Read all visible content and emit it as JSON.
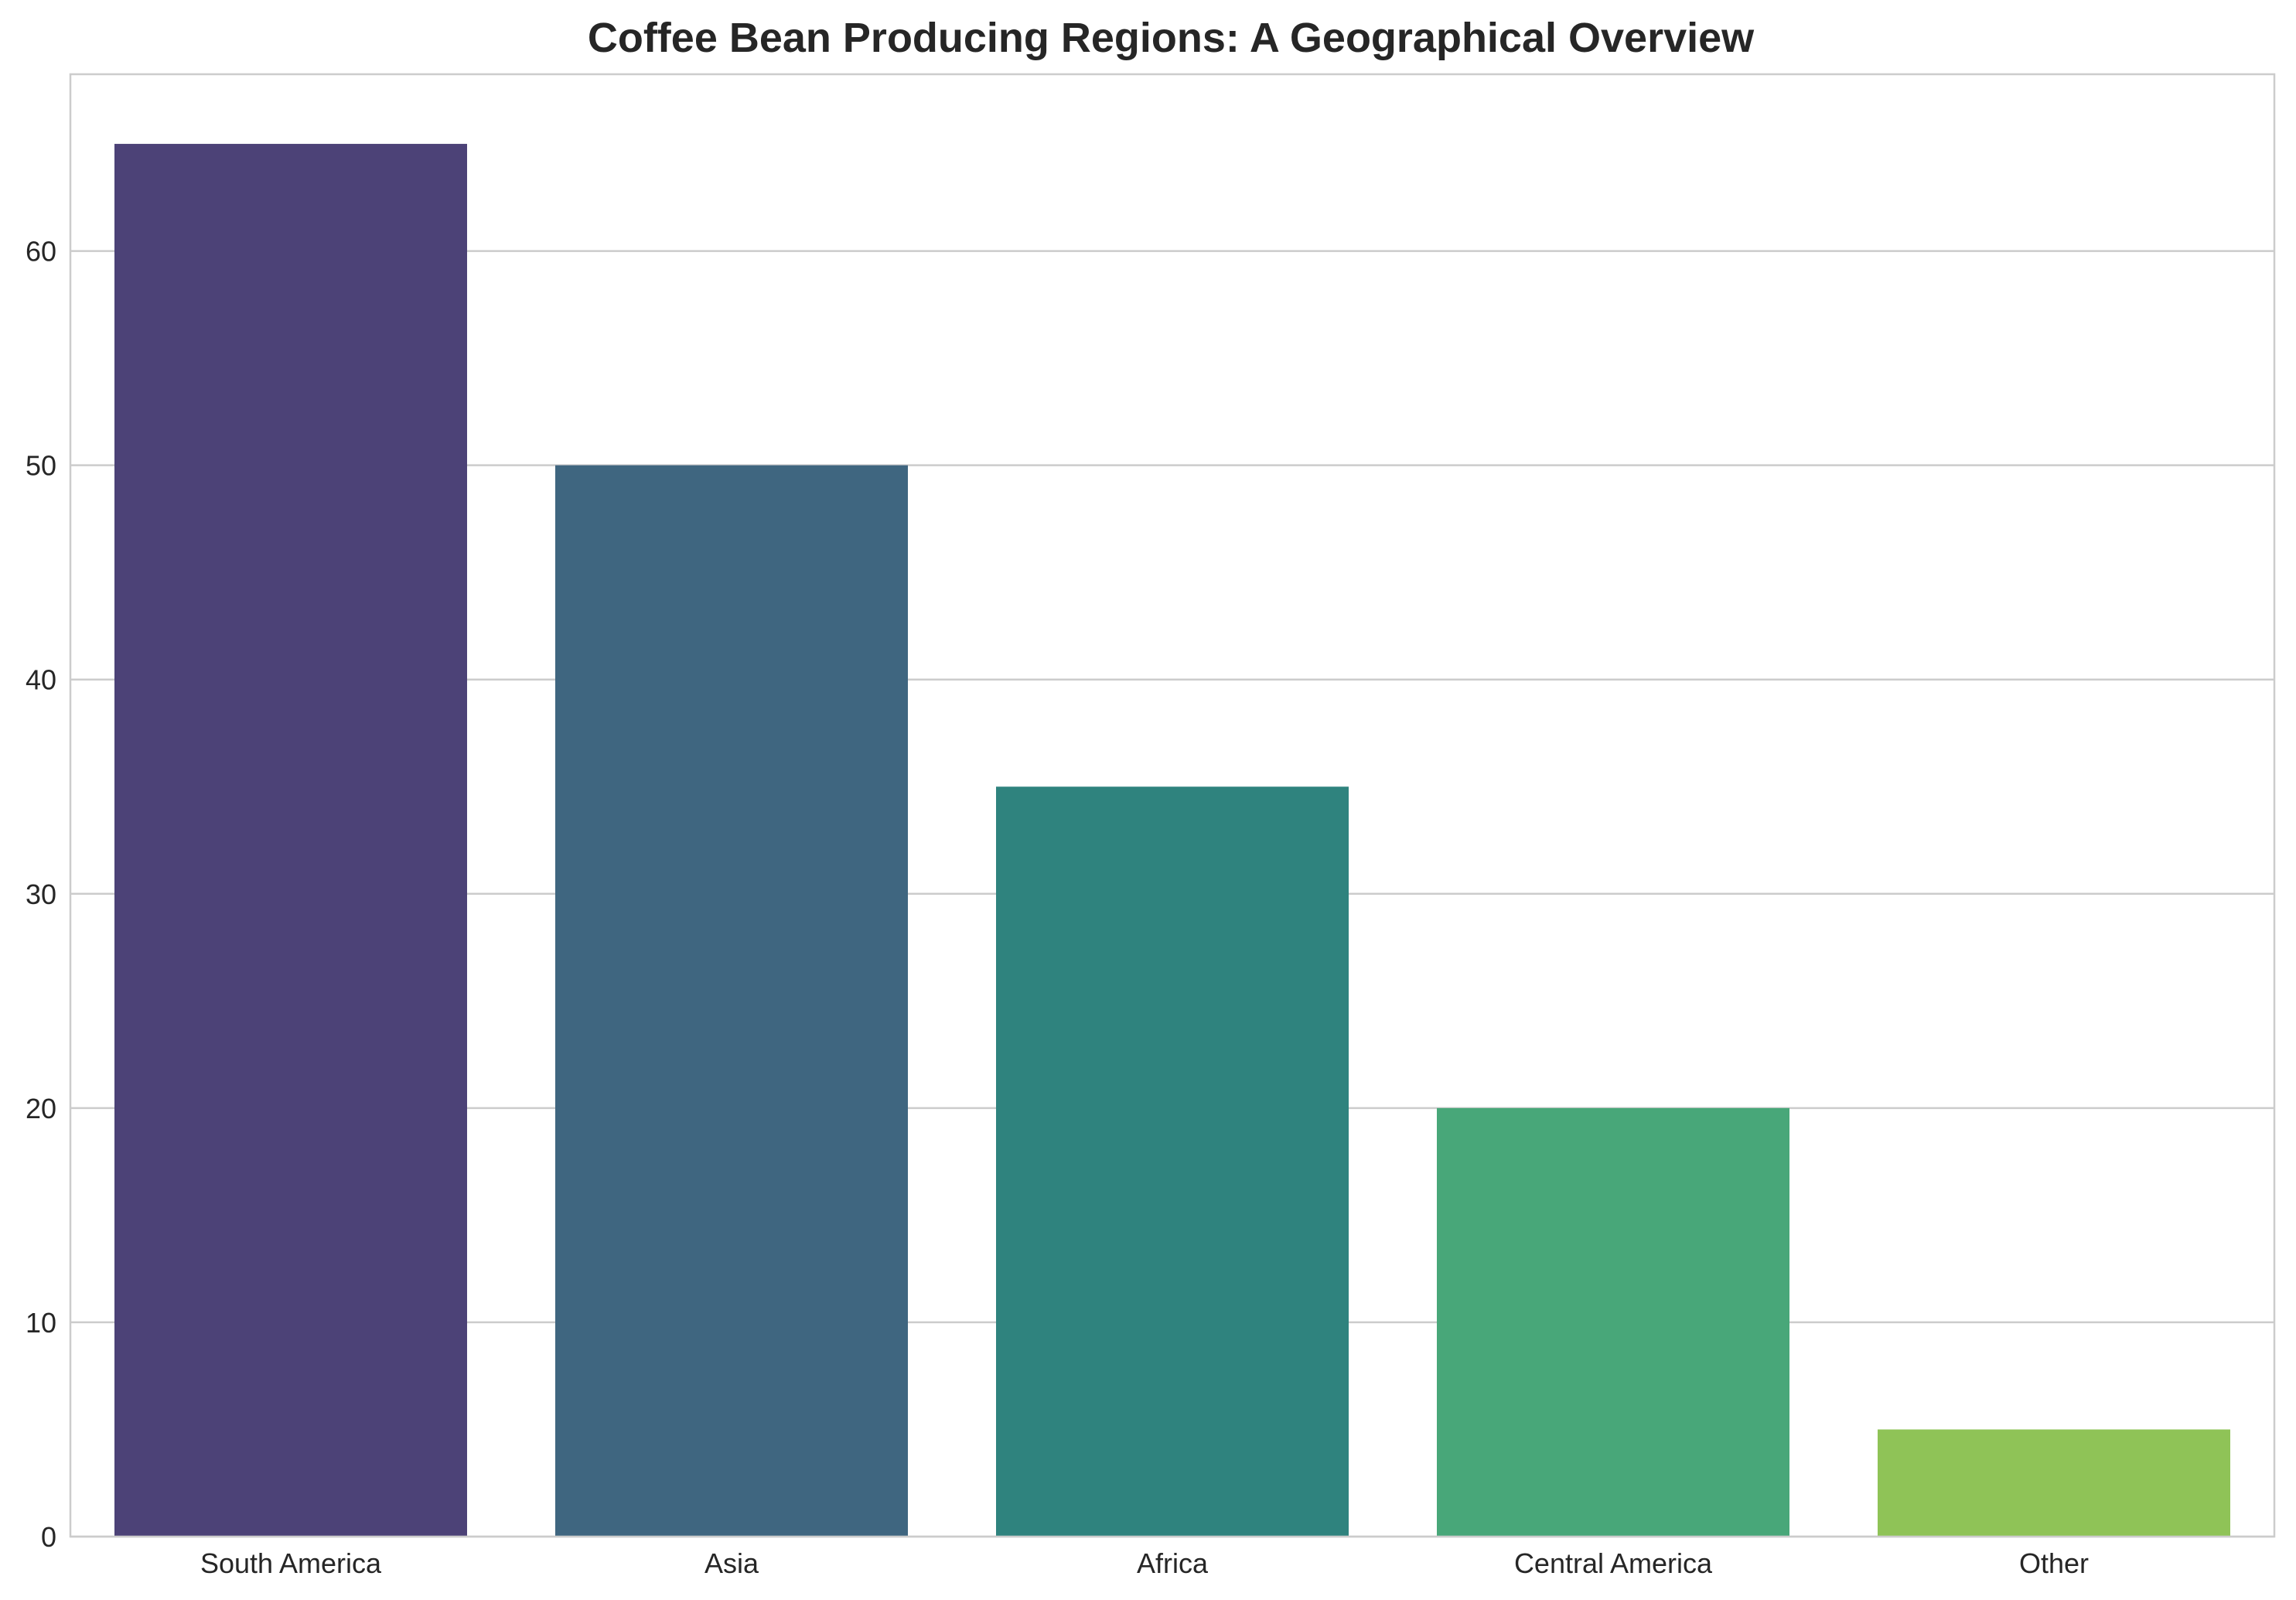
{
  "chart_data": {
    "type": "bar",
    "title": "Coffee Bean Producing Regions: A Geographical Overview",
    "xlabel": "",
    "ylabel": "",
    "categories": [
      "South America",
      "Asia",
      "Africa",
      "Central America",
      "Other"
    ],
    "values": [
      65,
      50,
      35,
      20,
      5
    ],
    "colors": [
      "#4c4277",
      "#3f6680",
      "#2f837e",
      "#48a779",
      "#8fc357"
    ],
    "ylim": [
      0,
      68.25
    ],
    "yticks": [
      0,
      10,
      20,
      30,
      40,
      50,
      60
    ],
    "grid": "horizontal",
    "legend": "none"
  },
  "style": {
    "grid_color": "#cccccc",
    "text_color": "#262626",
    "background": "#ffffff"
  }
}
